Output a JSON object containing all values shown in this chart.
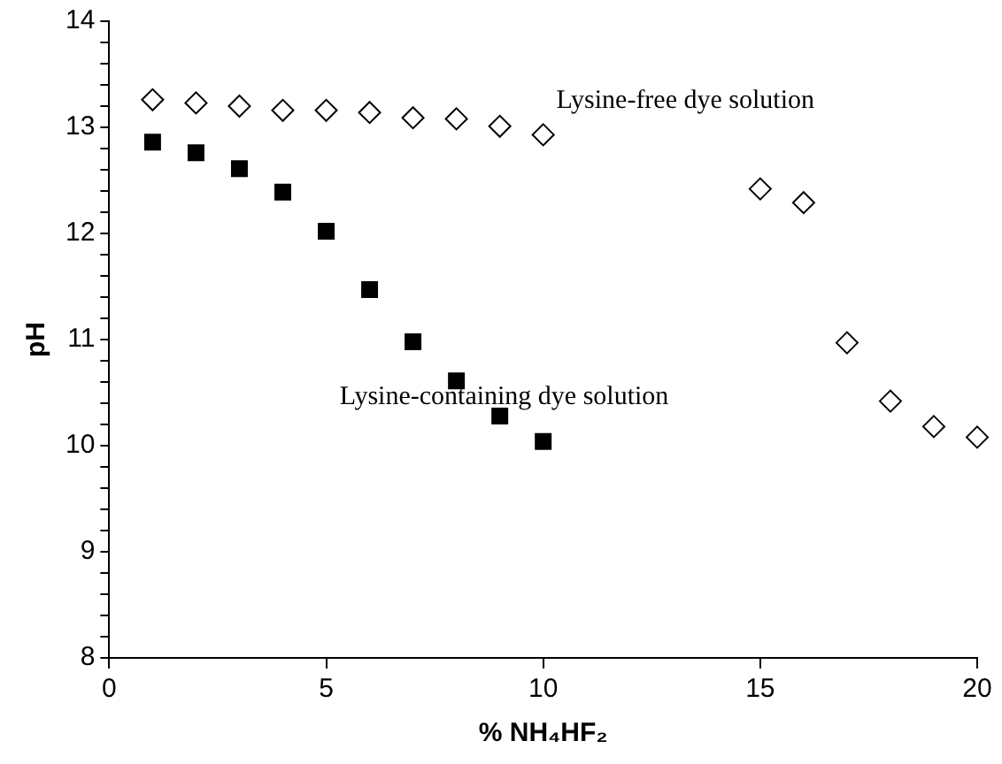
{
  "chart_data": {
    "type": "scatter",
    "xlabel": "% NH₄HF₂",
    "ylabel": "pH",
    "xlim": [
      0,
      20
    ],
    "xticks": [
      0,
      5,
      10,
      15,
      20
    ],
    "ylim": [
      8,
      14
    ],
    "yticks": [
      8,
      {
        "value": 8.2,
        "label": null
      },
      {
        "value": 8.4,
        "label": null
      },
      {
        "value": 8.6,
        "label": null
      },
      {
        "value": 8.8,
        "label": null
      },
      9,
      {
        "value": 9.2,
        "label": null
      },
      {
        "value": 9.4,
        "label": null
      },
      {
        "value": 9.6,
        "label": null
      },
      {
        "value": 9.8,
        "label": null
      },
      10,
      {
        "value": 10.2,
        "label": null
      },
      {
        "value": 10.4,
        "label": null
      },
      {
        "value": 10.6,
        "label": null
      },
      {
        "value": 10.8,
        "label": null
      },
      11,
      {
        "value": 11.2,
        "label": null
      },
      {
        "value": 11.4,
        "label": null
      },
      {
        "value": 11.6,
        "label": null
      },
      {
        "value": 11.8,
        "label": null
      },
      12,
      {
        "value": 12.2,
        "label": null
      },
      {
        "value": 12.4,
        "label": null
      },
      {
        "value": 12.6,
        "label": null
      },
      {
        "value": 12.8,
        "label": null
      },
      13,
      {
        "value": 13.2,
        "label": null
      },
      {
        "value": 13.4,
        "label": null
      },
      {
        "value": 13.6,
        "label": null
      },
      {
        "value": 13.8,
        "label": null
      },
      14
    ],
    "grid": false,
    "legend": false,
    "series": [
      {
        "name": "Lysine-free dye solution",
        "color": "#000000",
        "marker": "diamond",
        "x": [
          1,
          2,
          3,
          4,
          5,
          6,
          7,
          8,
          9,
          10,
          15,
          16,
          17,
          18,
          19,
          20
        ],
        "values": [
          13.26,
          13.23,
          13.2,
          13.16,
          13.16,
          13.14,
          13.09,
          13.08,
          13.01,
          12.93,
          12.42,
          12.29,
          10.97,
          10.42,
          10.18,
          10.08
        ]
      },
      {
        "name": "Lysine-containing dye solution",
        "color": "#000000",
        "marker": "square",
        "x": [
          1,
          2,
          3,
          4,
          5,
          6,
          7,
          8,
          9,
          10
        ],
        "values": [
          12.86,
          12.76,
          12.61,
          12.39,
          12.02,
          11.47,
          10.98,
          10.61,
          10.28,
          10.04
        ]
      }
    ]
  }
}
